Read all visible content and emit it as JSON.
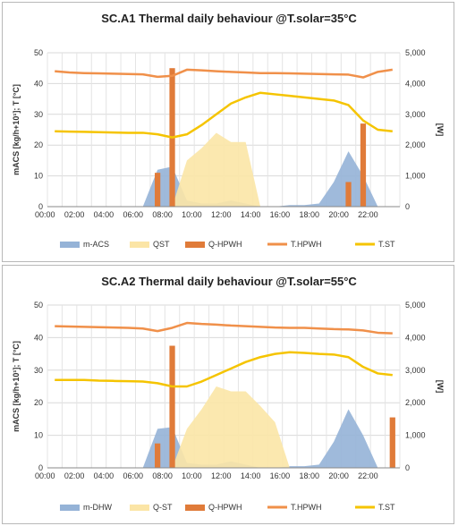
{
  "chart_data": [
    {
      "type": "line",
      "title": "SC.A1 Thermal daily behaviour @T.solar=35°C",
      "ylabel": "mACS [kg/h+10¹]; T [°C]",
      "y2label": "[W]",
      "ylim": [
        0,
        50
      ],
      "y2lim": [
        0,
        5000
      ],
      "yticks": [
        "0",
        "10",
        "20",
        "30",
        "40",
        "50"
      ],
      "y2ticks": [
        "0",
        "1,000",
        "2,000",
        "3,000",
        "4,000",
        "5,000"
      ],
      "xticks": [
        "00:00",
        "02:00",
        "04:00",
        "06:00",
        "08:00",
        "10:00",
        "12:00",
        "14:00",
        "16:00",
        "18:00",
        "20:00",
        "22:00"
      ],
      "grid": true,
      "legend_position": "bottom",
      "x": [
        0,
        1,
        2,
        3,
        4,
        5,
        6,
        7,
        8,
        9,
        10,
        11,
        12,
        13,
        14,
        15,
        16,
        17,
        18,
        19,
        20,
        21,
        22,
        23
      ],
      "series": [
        {
          "name": "m-ACS",
          "kind": "area",
          "axis": "left",
          "color": "#95b3d7",
          "values": [
            0,
            0,
            0,
            0,
            0,
            0,
            0,
            12,
            13,
            2,
            1,
            1,
            2,
            1,
            0,
            0,
            0.5,
            0.5,
            1,
            8,
            18,
            10,
            0,
            0
          ]
        },
        {
          "name": "QST",
          "kind": "area",
          "axis": "right",
          "color": "#fbe5a6",
          "values": [
            0,
            0,
            0,
            0,
            0,
            0,
            0,
            0,
            0,
            1500,
            1900,
            2400,
            2100,
            2100,
            0,
            0,
            0,
            0,
            0,
            0,
            0,
            0,
            0,
            0
          ]
        },
        {
          "name": "Q-HPWH",
          "kind": "bar",
          "axis": "left",
          "color": "#e07b39",
          "values": [
            0,
            0,
            0,
            0,
            0,
            0,
            0,
            11,
            45,
            0,
            0,
            0,
            0,
            0,
            0,
            0,
            0,
            0,
            0,
            0,
            8,
            27,
            0,
            0
          ]
        },
        {
          "name": "T.HPWH",
          "kind": "line",
          "axis": "left",
          "color": "#f0904a",
          "values": [
            44,
            43.6,
            43.4,
            43.3,
            43.2,
            43.1,
            43,
            42.2,
            42.5,
            44.5,
            44.3,
            44,
            43.8,
            43.6,
            43.4,
            43.4,
            43.3,
            43.2,
            43.1,
            43,
            42.9,
            42,
            43.8,
            44.5
          ]
        },
        {
          "name": "T.ST",
          "kind": "line",
          "axis": "left",
          "color": "#f5c400",
          "values": [
            24.5,
            24.4,
            24.3,
            24.2,
            24.1,
            24,
            24,
            23.5,
            22.5,
            23.5,
            26.5,
            30,
            33.5,
            35.5,
            37,
            36.5,
            36,
            35.5,
            35,
            34.5,
            33,
            28,
            25,
            24.5
          ]
        }
      ]
    },
    {
      "type": "line",
      "title": "SC.A2 Thermal daily behaviour @T.solar=55°C",
      "ylabel": "mACS [kg/h+10¹]; T [°C]",
      "y2label": "[W]",
      "ylim": [
        0,
        50
      ],
      "y2lim": [
        0,
        5000
      ],
      "yticks": [
        "0",
        "10",
        "20",
        "30",
        "40",
        "50"
      ],
      "y2ticks": [
        "0",
        "1,000",
        "2,000",
        "3,000",
        "4,000",
        "5,000"
      ],
      "xticks": [
        "00:00",
        "02:00",
        "04:00",
        "06:00",
        "08:00",
        "10:00",
        "12:00",
        "14:00",
        "16:00",
        "18:00",
        "20:00",
        "22:00"
      ],
      "grid": true,
      "legend_position": "bottom",
      "x": [
        0,
        1,
        2,
        3,
        4,
        5,
        6,
        7,
        8,
        9,
        10,
        11,
        12,
        13,
        14,
        15,
        16,
        17,
        18,
        19,
        20,
        21,
        22,
        23
      ],
      "series": [
        {
          "name": "m-DHW",
          "kind": "area",
          "axis": "left",
          "color": "#95b3d7",
          "values": [
            0,
            0,
            0,
            0,
            0,
            0,
            0,
            12,
            12.5,
            1.5,
            1,
            1,
            2,
            1,
            0,
            0,
            0.5,
            0.5,
            1,
            8,
            18,
            10,
            0,
            0
          ]
        },
        {
          "name": "Q-ST",
          "kind": "area",
          "axis": "right",
          "color": "#fbe5a6",
          "values": [
            0,
            0,
            0,
            0,
            0,
            0,
            0,
            0,
            0,
            1200,
            1800,
            2500,
            2350,
            2350,
            1900,
            1400,
            0,
            0,
            0,
            0,
            0,
            0,
            0,
            0
          ]
        },
        {
          "name": "Q-HPWH",
          "kind": "bar",
          "axis": "left",
          "color": "#e07b39",
          "values": [
            0,
            0,
            0,
            0,
            0,
            0,
            0,
            7.5,
            37.5,
            0,
            0,
            0,
            0,
            0,
            0,
            0,
            0,
            0,
            0,
            0,
            0,
            0,
            0,
            15.5
          ]
        },
        {
          "name": "T.HPWH",
          "kind": "line",
          "axis": "left",
          "color": "#f0904a",
          "values": [
            43.5,
            43.4,
            43.3,
            43.2,
            43.1,
            43,
            42.8,
            42,
            43,
            44.5,
            44.2,
            44,
            43.7,
            43.5,
            43.3,
            43.1,
            43,
            43,
            42.8,
            42.6,
            42.5,
            42.2,
            41.5,
            41.3
          ]
        },
        {
          "name": "T.ST",
          "kind": "line",
          "axis": "left",
          "color": "#f5c400",
          "values": [
            27,
            27,
            27,
            26.8,
            26.7,
            26.6,
            26.5,
            26,
            25,
            25,
            26.5,
            28.5,
            30.5,
            32.5,
            34,
            35,
            35.5,
            35.3,
            35,
            34.8,
            34,
            31,
            29,
            28.5
          ]
        }
      ]
    }
  ]
}
